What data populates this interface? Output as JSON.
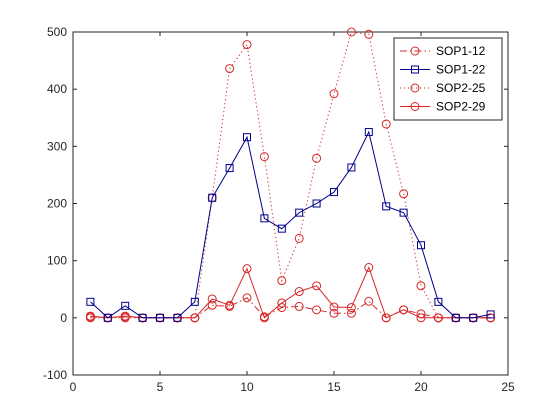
{
  "chart_data": {
    "type": "line",
    "x": [
      1,
      2,
      3,
      4,
      5,
      6,
      7,
      8,
      9,
      10,
      11,
      12,
      13,
      14,
      15,
      16,
      17,
      18,
      19,
      20,
      21,
      22,
      23,
      24
    ],
    "xlim": [
      0,
      25
    ],
    "ylim": [
      -100,
      500
    ],
    "x_ticks": [
      0,
      5,
      10,
      15,
      20,
      25
    ],
    "y_ticks": [
      -100,
      0,
      100,
      200,
      300,
      400,
      500
    ],
    "x_tick_labels": [
      "0",
      "5",
      "10",
      "15",
      "20",
      "25"
    ],
    "y_tick_labels": [
      "-100",
      "0",
      "100",
      "200",
      "300",
      "400",
      "500"
    ],
    "grid": false,
    "legend_position": "top-right",
    "series": [
      {
        "name": "SOP1-12",
        "color": "#d62728",
        "line_style": "dash-dot",
        "marker": "circle",
        "values": [
          2,
          0,
          2,
          0,
          0,
          0,
          0,
          22,
          20,
          35,
          2,
          18,
          20,
          14,
          8,
          8,
          29,
          0,
          14,
          7,
          0,
          0,
          0,
          0
        ]
      },
      {
        "name": "SOP1-22",
        "color": "#00008b",
        "line_style": "solid",
        "marker": "square",
        "values": [
          28,
          0,
          21,
          0,
          0,
          0,
          28,
          210,
          262,
          316,
          174,
          156,
          184,
          200,
          220,
          263,
          325,
          195,
          184,
          127,
          28,
          0,
          0,
          6
        ]
      },
      {
        "name": "SOP2-25",
        "color": "#d62728",
        "line_style": "dotted",
        "marker": "circle",
        "values": [
          0,
          0,
          0,
          0,
          0,
          0,
          0,
          210,
          436,
          478,
          282,
          65,
          139,
          279,
          392,
          500,
          496,
          339,
          217,
          56,
          0,
          0,
          0,
          0
        ]
      },
      {
        "name": "SOP2-29",
        "color": "#d62728",
        "line_style": "solid",
        "marker": "circle",
        "values": [
          3,
          0,
          3,
          0,
          0,
          0,
          0,
          33,
          22,
          86,
          0,
          26,
          46,
          56,
          19,
          18,
          88,
          0,
          14,
          0,
          0,
          0,
          0,
          0
        ]
      }
    ]
  }
}
